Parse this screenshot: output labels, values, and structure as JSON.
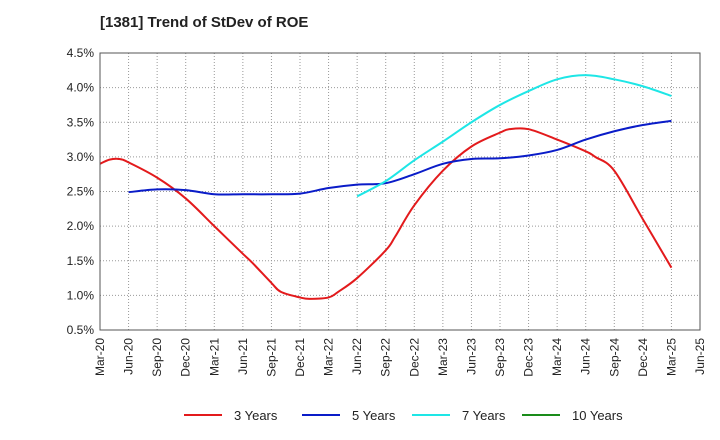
{
  "title": "[1381]  Trend of StDev of ROE",
  "chart_data": {
    "type": "line",
    "title": "[1381]  Trend of StDev of ROE",
    "xlabel": "",
    "ylabel": "",
    "x_tick_labels": [
      "Mar-20",
      "Jun-20",
      "Sep-20",
      "Dec-20",
      "Mar-21",
      "Jun-21",
      "Sep-21",
      "Dec-21",
      "Mar-22",
      "Jun-22",
      "Sep-22",
      "Dec-22",
      "Mar-23",
      "Jun-23",
      "Sep-23",
      "Dec-23",
      "Mar-24",
      "Jun-24",
      "Sep-24",
      "Dec-24",
      "Mar-25",
      "Jun-25"
    ],
    "y_tick_labels": [
      "0.5%",
      "1.0%",
      "1.5%",
      "2.0%",
      "2.5%",
      "3.0%",
      "3.5%",
      "4.0%",
      "4.5%"
    ],
    "ylim": [
      0.5,
      4.5
    ],
    "y_unit": "%",
    "grid": "dotted",
    "legend_position": "bottom",
    "series": [
      {
        "name": "3 Years",
        "color": "#e31a1c",
        "x": [
          "Mar-20",
          "Apr-20",
          "May-20",
          "Jun-20",
          "Sep-20",
          "Dec-20",
          "Mar-21",
          "Jun-21",
          "Jul-21",
          "Sep-21",
          "Oct-21",
          "Dec-21",
          "Jan-22",
          "Mar-22",
          "Apr-22",
          "Jun-22",
          "Sep-22",
          "Oct-22",
          "Dec-22",
          "Mar-23",
          "Jun-23",
          "Sep-23",
          "Oct-23",
          "Dec-23",
          "Mar-24",
          "Jun-24",
          "Jul-24",
          "Sep-24",
          "Dec-24",
          "Mar-25"
        ],
        "values": [
          2.9,
          2.96,
          2.97,
          2.92,
          2.7,
          2.4,
          2.0,
          1.6,
          1.47,
          1.18,
          1.05,
          0.97,
          0.95,
          0.97,
          1.05,
          1.25,
          1.65,
          1.85,
          2.3,
          2.8,
          3.15,
          3.35,
          3.4,
          3.4,
          3.25,
          3.08,
          3.0,
          2.8,
          2.1,
          1.4
        ]
      },
      {
        "name": "5 Years",
        "color": "#0a1cc8",
        "x": [
          "Mar-20",
          "Jun-20",
          "Sep-20",
          "Dec-20",
          "Mar-21",
          "Jun-21",
          "Sep-21",
          "Dec-21",
          "Mar-22",
          "Jun-22",
          "Sep-22",
          "Dec-22",
          "Mar-23",
          "Jun-23",
          "Sep-23",
          "Dec-23",
          "Mar-24",
          "Jun-24",
          "Sep-24",
          "Dec-24",
          "Mar-25"
        ],
        "values": [
          null,
          2.49,
          2.53,
          2.52,
          2.46,
          2.46,
          2.46,
          2.47,
          2.55,
          2.6,
          2.62,
          2.75,
          2.9,
          2.97,
          2.98,
          3.02,
          3.1,
          3.25,
          3.37,
          3.46,
          3.52
        ]
      },
      {
        "name": "7 Years",
        "color": "#1ee6e6",
        "x": [
          "Mar-20",
          "Jun-20",
          "Sep-20",
          "Dec-20",
          "Mar-21",
          "Jun-21",
          "Sep-21",
          "Dec-21",
          "Mar-22",
          "Jun-22",
          "Sep-22",
          "Dec-22",
          "Mar-23",
          "Jun-23",
          "Sep-23",
          "Dec-23",
          "Mar-24",
          "Jun-24",
          "Sep-24",
          "Dec-24",
          "Mar-25"
        ],
        "values": [
          null,
          null,
          null,
          null,
          null,
          null,
          null,
          null,
          null,
          2.43,
          2.65,
          2.95,
          3.22,
          3.5,
          3.75,
          3.95,
          4.12,
          4.18,
          4.12,
          4.02,
          3.88
        ]
      },
      {
        "name": "10 Years",
        "color": "#1a8c1a",
        "x": [],
        "values": []
      }
    ]
  }
}
